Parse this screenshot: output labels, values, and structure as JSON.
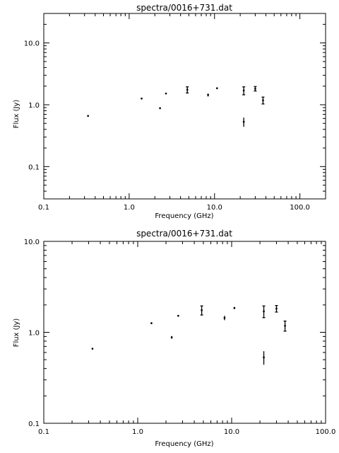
{
  "chart_data": [
    {
      "type": "scatter",
      "title": "spectra/0016+731.dat",
      "xlabel": "Frequency (GHz)",
      "ylabel": "Flux (Jy)",
      "x_scale": "log",
      "y_scale": "log",
      "xlim": [
        0.1,
        200
      ],
      "ylim": [
        0.03,
        30
      ],
      "x_tick_labels": [
        "0.1",
        "1.0",
        "10.0",
        "100.0"
      ],
      "y_tick_labels": [
        "0.1",
        "1.0",
        "10.0"
      ],
      "series": [
        {
          "points": [
            {
              "x": 0.33,
              "y": 0.66
            },
            {
              "x": 1.4,
              "y": 1.26,
              "yerr": 0.03
            },
            {
              "x": 2.3,
              "y": 0.88,
              "yerr": 0.03
            },
            {
              "x": 2.7,
              "y": 1.52,
              "yerr": 0.03
            },
            {
              "x": 4.8,
              "y": 1.75,
              "yerr": 0.2
            },
            {
              "x": 8.4,
              "y": 1.44,
              "yerr": 0.08
            },
            {
              "x": 10.7,
              "y": 1.85,
              "yerr": 0.05
            },
            {
              "x": 22.0,
              "y": 1.7,
              "yerr": 0.25
            },
            {
              "x": 22.0,
              "y": 0.53,
              "yerr": 0.09
            },
            {
              "x": 30.0,
              "y": 1.82,
              "yerr": 0.15
            },
            {
              "x": 37.0,
              "y": 1.18,
              "yerr": 0.15
            }
          ]
        }
      ]
    },
    {
      "type": "scatter",
      "title": "spectra/0016+731.dat",
      "xlabel": "Frequency (GHz)",
      "ylabel": "Flux (Jy)",
      "x_scale": "log",
      "y_scale": "log",
      "xlim": [
        0.1,
        100
      ],
      "ylim": [
        0.1,
        10
      ],
      "x_tick_labels": [
        "0.1",
        "1.0",
        "10.0",
        "100.0"
      ],
      "y_tick_labels": [
        "0.1",
        "1.0",
        "10.0"
      ],
      "series": [
        {
          "points": [
            {
              "x": 0.33,
              "y": 0.66
            },
            {
              "x": 1.4,
              "y": 1.26,
              "yerr": 0.03
            },
            {
              "x": 2.3,
              "y": 0.88,
              "yerr": 0.03
            },
            {
              "x": 2.7,
              "y": 1.52,
              "yerr": 0.03
            },
            {
              "x": 4.8,
              "y": 1.75,
              "yerr": 0.2
            },
            {
              "x": 8.4,
              "y": 1.44,
              "yerr": 0.08
            },
            {
              "x": 10.7,
              "y": 1.85,
              "yerr": 0.05
            },
            {
              "x": 22.0,
              "y": 1.7,
              "yerr": 0.25
            },
            {
              "x": 22.0,
              "y": 0.53,
              "yerr": 0.09
            },
            {
              "x": 30.0,
              "y": 1.82,
              "yerr": 0.15
            },
            {
              "x": 37.0,
              "y": 1.18,
              "yerr": 0.15
            }
          ]
        }
      ]
    }
  ]
}
